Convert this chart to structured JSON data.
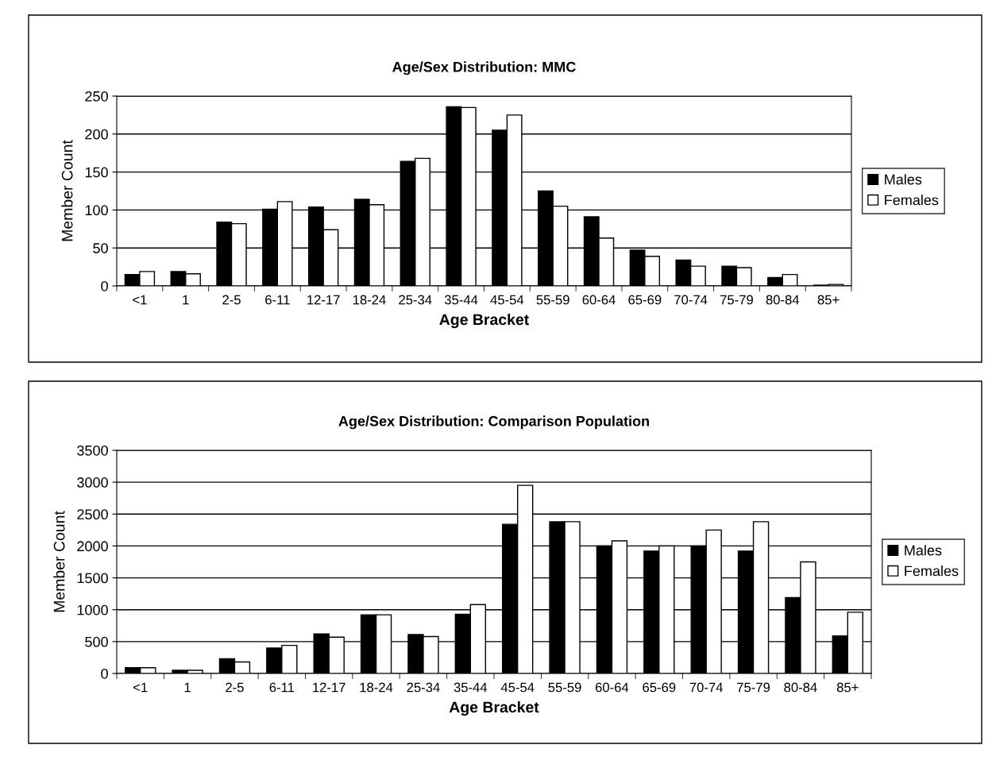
{
  "chart_data": [
    {
      "type": "bar",
      "title": "Age/Sex Distribution: MMC",
      "xlabel": "Age Bracket",
      "ylabel": "Member Count",
      "categories": [
        "<1",
        "1",
        "2-5",
        "6-11",
        "12-17",
        "18-24",
        "25-34",
        "35-44",
        "45-54",
        "55-59",
        "60-64",
        "65-69",
        "70-74",
        "75-79",
        "80-84",
        "85+"
      ],
      "series": [
        {
          "name": "Males",
          "color": "#000000",
          "values": [
            15,
            19,
            84,
            101,
            104,
            114,
            164,
            236,
            205,
            125,
            91,
            47,
            34,
            26,
            11,
            1
          ]
        },
        {
          "name": "Females",
          "color": "#ffffff",
          "values": [
            19,
            16,
            82,
            111,
            74,
            107,
            168,
            235,
            225,
            105,
            63,
            39,
            26,
            24,
            15,
            2
          ]
        }
      ],
      "ylim": [
        0,
        250
      ],
      "yticks": [
        0,
        50,
        100,
        150,
        200,
        250
      ],
      "grid": "y",
      "legend": "right"
    },
    {
      "type": "bar",
      "title": "Age/Sex Distribution: Comparison Population",
      "xlabel": "Age Bracket",
      "ylabel": "Member Count",
      "categories": [
        "<1",
        "1",
        "2-5",
        "6-11",
        "12-17",
        "18-24",
        "25-34",
        "35-44",
        "45-54",
        "55-59",
        "60-64",
        "65-69",
        "70-74",
        "75-79",
        "80-84",
        "85+"
      ],
      "series": [
        {
          "name": "Males",
          "color": "#000000",
          "values": [
            90,
            50,
            230,
            400,
            620,
            920,
            610,
            930,
            2340,
            2380,
            2000,
            1920,
            2000,
            1920,
            1190,
            590
          ]
        },
        {
          "name": "Females",
          "color": "#ffffff",
          "values": [
            90,
            50,
            180,
            440,
            570,
            920,
            580,
            1080,
            2950,
            2380,
            2080,
            2000,
            2250,
            2380,
            1750,
            960
          ]
        }
      ],
      "ylim": [
        0,
        3500
      ],
      "yticks": [
        0,
        500,
        1000,
        1500,
        2000,
        2500,
        3000,
        3500
      ],
      "grid": "y",
      "legend": "right"
    }
  ]
}
